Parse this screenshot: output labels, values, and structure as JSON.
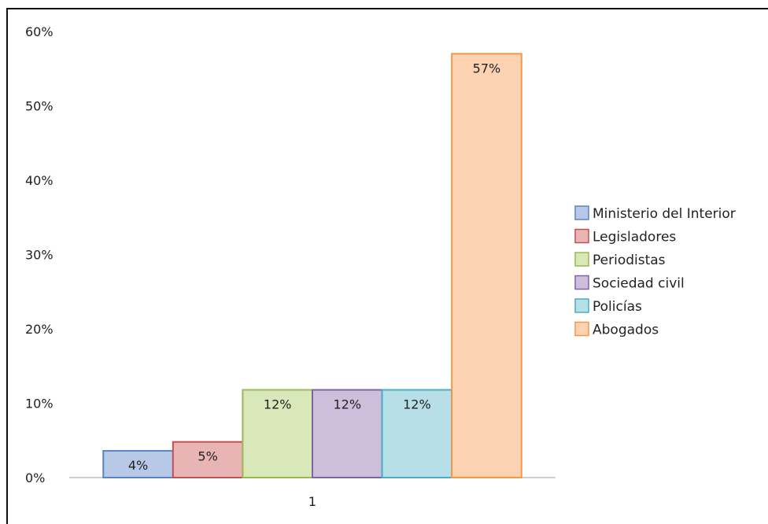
{
  "chart_data": {
    "type": "bar",
    "title": "",
    "xlabel": "",
    "ylabel": "",
    "categories": [
      "1"
    ],
    "ylim": [
      0,
      60
    ],
    "yticks": [
      "0%",
      "10%",
      "20%",
      "30%",
      "40%",
      "50%",
      "60%"
    ],
    "grid": false,
    "legend_position": "right",
    "series": [
      {
        "name": "Ministerio del Interior",
        "values": [
          3.6
        ],
        "label": "4%",
        "fill": "#b7c9e6",
        "stroke": "#5b84c4"
      },
      {
        "name": "Legisladores",
        "values": [
          4.8
        ],
        "label": "5%",
        "fill": "#e8b4b4",
        "stroke": "#c4504f"
      },
      {
        "name": "Periodistas",
        "values": [
          11.8
        ],
        "label": "12%",
        "fill": "#d9e8b8",
        "stroke": "#98b954"
      },
      {
        "name": "Sociedad civil",
        "values": [
          11.8
        ],
        "label": "12%",
        "fill": "#cdbfdc",
        "stroke": "#8064a2"
      },
      {
        "name": "Policías",
        "values": [
          11.8
        ],
        "label": "12%",
        "fill": "#b6dfe8",
        "stroke": "#4bacc6"
      },
      {
        "name": "Abogados",
        "values": [
          57
        ],
        "label": "57%",
        "fill": "#fbd3b3",
        "stroke": "#f79646"
      }
    ]
  }
}
